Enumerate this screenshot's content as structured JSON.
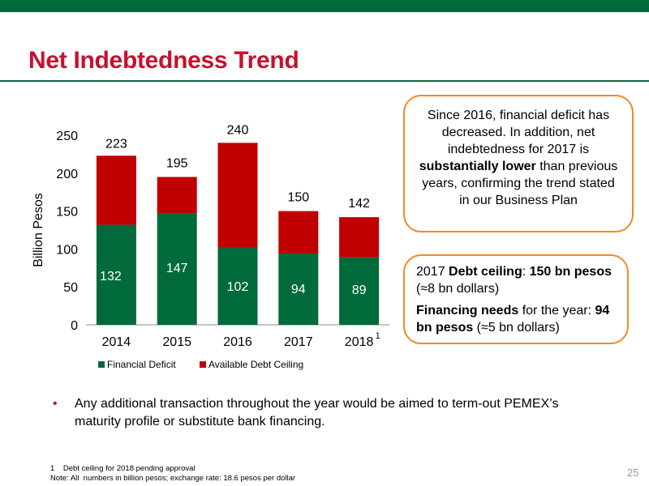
{
  "slide": {
    "title": "Net Indebtedness Trend",
    "page_number": "25"
  },
  "colors": {
    "financial_deficit": "#006a3a",
    "available_debt_ceiling": "#c00000",
    "title": "#c8102e",
    "box_border": "#f08a24"
  },
  "chart_data": {
    "type": "bar",
    "stacked": true,
    "categories": [
      "2014",
      "2015",
      "2016",
      "2017",
      "2018"
    ],
    "category_superscripts": [
      "",
      "",
      "",
      "",
      "1"
    ],
    "series": [
      {
        "name": "Financial Deficit",
        "values": [
          132,
          147,
          102,
          94,
          89
        ],
        "color": "#006a3a"
      },
      {
        "name": "Available Debt Ceiling",
        "values": [
          91,
          48,
          138,
          56,
          53
        ],
        "color": "#c00000"
      }
    ],
    "totals": [
      223,
      195,
      240,
      150,
      142
    ],
    "ylabel": "Billion Pesos",
    "xlabel": "",
    "ylim": [
      0,
      250
    ],
    "yticks": [
      0,
      50,
      100,
      150,
      200,
      250
    ],
    "grid": false,
    "legend_position": "bottom"
  },
  "callout_top": {
    "pre": "Since 2016, financial deficit has decreased. In addition, net indebtedness for 2017 is ",
    "bold": "substantially lower",
    "post": " than previous years, confirming the trend stated in our Business Plan"
  },
  "callout_bottom": {
    "line1_a": "2017 ",
    "line1_b": "Debt ceiling",
    "line1_c": ": ",
    "line1_d": "150 bn pesos",
    "line1_e": " (≈8 bn dollars)",
    "line2_a": "Financing needs",
    "line2_b": " for the year: ",
    "line2_c": "94 bn pesos",
    "line2_d": " (≈5 bn dollars)"
  },
  "bullet": {
    "symbol": "•",
    "text": "Any additional transaction throughout the year would be aimed to term-out PEMEX’s maturity profile or substitute bank financing."
  },
  "footnotes": {
    "note1": "1    Debt ceiling for 2018 pending approval",
    "note2": "Note: All  numbers in billion pesos; exchange rate: 18.6 pesos per dollar"
  }
}
